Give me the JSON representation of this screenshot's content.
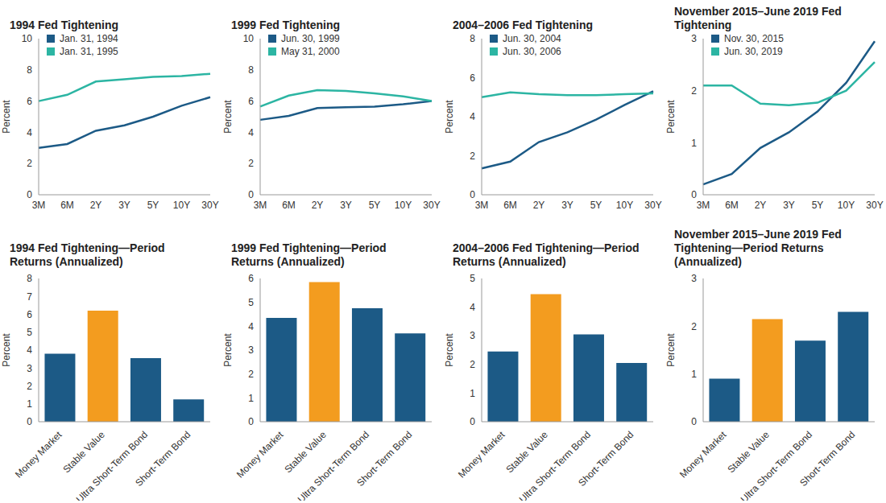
{
  "chart_data": [
    {
      "type": "line",
      "title": "1994 Fed Tightening",
      "categories": [
        "3M",
        "6M",
        "2Y",
        "3Y",
        "5Y",
        "10Y",
        "30Y"
      ],
      "series": [
        {
          "name": "Jan. 31, 1994",
          "color": "#1c5a86",
          "values": [
            3.0,
            3.25,
            4.1,
            4.45,
            5.0,
            5.7,
            6.25
          ]
        },
        {
          "name": "Jan. 31, 1995",
          "color": "#2cb5a3",
          "values": [
            6.0,
            6.4,
            7.25,
            7.4,
            7.55,
            7.6,
            7.75
          ]
        }
      ],
      "ylim": [
        0,
        10
      ],
      "yticks": [
        0,
        2,
        4,
        6,
        8,
        10
      ],
      "ylabel": "Percent",
      "legend": "upper left"
    },
    {
      "type": "line",
      "title": "1999 Fed Tightening",
      "categories": [
        "3M",
        "6M",
        "2Y",
        "3Y",
        "5Y",
        "10Y",
        "30Y"
      ],
      "series": [
        {
          "name": "Jun. 30, 1999",
          "color": "#1c5a86",
          "values": [
            4.8,
            5.05,
            5.55,
            5.6,
            5.65,
            5.8,
            6.0
          ]
        },
        {
          "name": "May 31, 2000",
          "color": "#2cb5a3",
          "values": [
            5.65,
            6.35,
            6.7,
            6.65,
            6.5,
            6.3,
            6.0
          ]
        }
      ],
      "ylim": [
        0,
        10
      ],
      "yticks": [
        0,
        2,
        4,
        6,
        8,
        10
      ],
      "ylabel": "Percent",
      "legend": "upper left"
    },
    {
      "type": "line",
      "title": "2004–2006 Fed Tightening",
      "categories": [
        "3M",
        "6M",
        "2Y",
        "3Y",
        "5Y",
        "10Y",
        "30Y"
      ],
      "series": [
        {
          "name": "Jun. 30, 2004",
          "color": "#1c5a86",
          "values": [
            1.35,
            1.7,
            2.7,
            3.2,
            3.85,
            4.6,
            5.3
          ]
        },
        {
          "name": "Jun. 30, 2006",
          "color": "#2cb5a3",
          "values": [
            5.0,
            5.25,
            5.15,
            5.1,
            5.1,
            5.15,
            5.2
          ]
        }
      ],
      "ylim": [
        0,
        8
      ],
      "yticks": [
        0,
        2,
        4,
        6,
        8
      ],
      "ylabel": "Percent",
      "legend": "upper left"
    },
    {
      "type": "line",
      "title": "November 2015–June 2019 Fed Tightening",
      "categories": [
        "3M",
        "6M",
        "2Y",
        "3Y",
        "5Y",
        "10Y",
        "30Y"
      ],
      "series": [
        {
          "name": "Nov. 30, 2015",
          "color": "#1c5a86",
          "values": [
            0.2,
            0.4,
            0.9,
            1.2,
            1.6,
            2.15,
            2.95
          ]
        },
        {
          "name": "Jun. 30, 2019",
          "color": "#2cb5a3",
          "values": [
            2.1,
            2.1,
            1.75,
            1.72,
            1.77,
            2.0,
            2.55
          ]
        }
      ],
      "ylim": [
        0,
        3
      ],
      "yticks": [
        0,
        1,
        2,
        3
      ],
      "ylabel": "Percent",
      "legend": "upper left"
    },
    {
      "type": "bar",
      "title": "1994 Fed Tightening—Period Returns (Annualized)",
      "categories": [
        "Money Market",
        "Stable Value",
        "Ultra Short-Term Bond",
        "Short-Term Bond"
      ],
      "values": [
        3.8,
        6.2,
        3.55,
        1.25
      ],
      "colors": [
        "#1c5a86",
        "#f39c1f",
        "#1c5a86",
        "#1c5a86"
      ],
      "ylim": [
        0,
        8
      ],
      "yticks": [
        0,
        1,
        2,
        3,
        4,
        5,
        6,
        7,
        8
      ],
      "ylabel": "Percent"
    },
    {
      "type": "bar",
      "title": "1999 Fed Tightening—Period Returns (Annualized)",
      "categories": [
        "Money Market",
        "Stable Value",
        "Ultra Short-Term Bond",
        "Short-Term Bond"
      ],
      "values": [
        4.35,
        5.85,
        4.75,
        3.7
      ],
      "colors": [
        "#1c5a86",
        "#f39c1f",
        "#1c5a86",
        "#1c5a86"
      ],
      "ylim": [
        0,
        6
      ],
      "yticks": [
        0,
        1,
        2,
        3,
        4,
        5,
        6
      ],
      "ylabel": "Percent"
    },
    {
      "type": "bar",
      "title": "2004–2006 Fed Tightening—Period Returns (Annualized)",
      "categories": [
        "Money Market",
        "Stable Value",
        "Ultra Short-Term Bond",
        "Short-Term Bond"
      ],
      "values": [
        2.45,
        4.45,
        3.05,
        2.05
      ],
      "colors": [
        "#1c5a86",
        "#f39c1f",
        "#1c5a86",
        "#1c5a86"
      ],
      "ylim": [
        0,
        5
      ],
      "yticks": [
        0,
        1,
        2,
        3,
        4,
        5
      ],
      "ylabel": "Percent"
    },
    {
      "type": "bar",
      "title": "November 2015–June 2019 Fed Tightening—Period Returns (Annualized)",
      "categories": [
        "Money Market",
        "Stable Value",
        "Ultra Short-Term Bond",
        "Short-Term Bond"
      ],
      "values": [
        0.9,
        2.15,
        1.7,
        2.3
      ],
      "colors": [
        "#1c5a86",
        "#f39c1f",
        "#1c5a86",
        "#1c5a86"
      ],
      "ylim": [
        0,
        3
      ],
      "yticks": [
        0,
        1,
        2,
        3
      ],
      "ylabel": "Percent"
    }
  ]
}
